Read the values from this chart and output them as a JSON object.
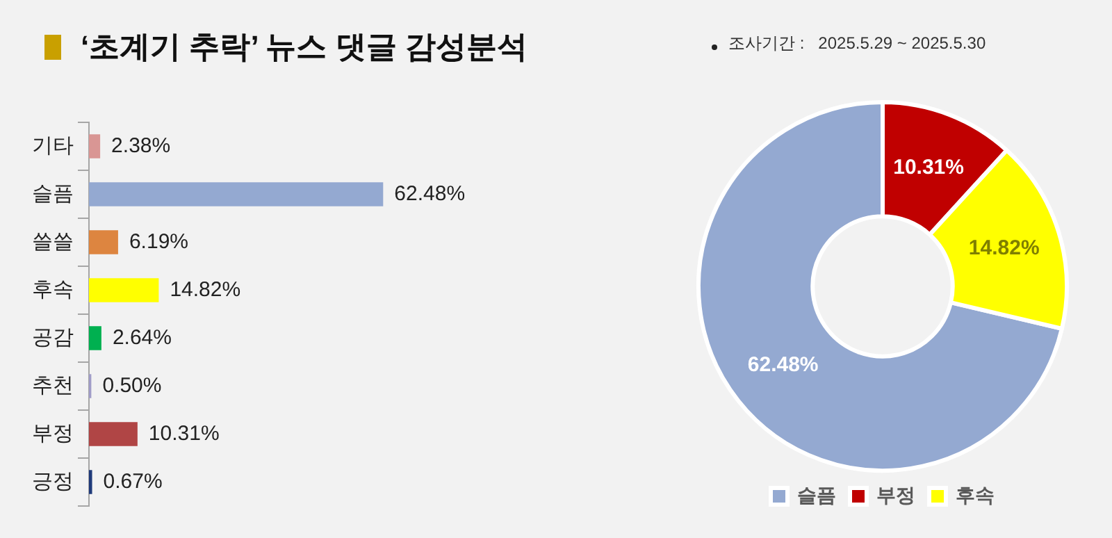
{
  "chart_data": [
    {
      "type": "bar",
      "title": "‘초계기 추락’ 뉴스 댓글 감성분석",
      "annotations": [
        "조사기간 :   2025.5.29 ~ 2025.5.30"
      ],
      "orientation": "horizontal",
      "categories": [
        "기타",
        "슬픔",
        "쓸쓸",
        "후속",
        "공감",
        "추천",
        "부정",
        "긍정"
      ],
      "values": [
        2.38,
        62.48,
        6.19,
        14.82,
        2.64,
        0.5,
        10.31,
        0.67
      ],
      "colors": [
        "#d99694",
        "#94a9d1",
        "#dd8540",
        "#ffff00",
        "#00b050",
        "#a09cc8",
        "#b04545",
        "#1f3a7a"
      ],
      "data_labels": true,
      "value_labels": [
        "2.38%",
        "62.48%",
        "6.19%",
        "14.82%",
        "2.64%",
        "0.50%",
        "10.31%",
        "0.67%"
      ]
    },
    {
      "type": "donut",
      "categories": [
        "슬픔",
        "부정",
        "후속"
      ],
      "values": [
        62.48,
        10.31,
        14.82
      ],
      "colors": [
        "#94a9d1",
        "#c00000",
        "#ffff00"
      ],
      "legend": "bottom",
      "data_labels": true,
      "value_labels": [
        "62.48%",
        "10.31%",
        "14.82%"
      ]
    }
  ]
}
